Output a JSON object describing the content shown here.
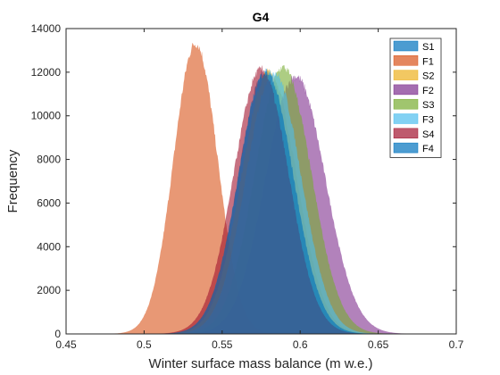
{
  "chart_data": {
    "type": "histogram",
    "title": "G4",
    "xlabel": "Winter surface mass balance (m w.e.)",
    "ylabel": "Frequency",
    "xlim": [
      0.45,
      0.7
    ],
    "ylim": [
      0,
      14000
    ],
    "xticks": [
      "0.45",
      "0.5",
      "0.55",
      "0.6",
      "0.65",
      "0.7"
    ],
    "yticks": [
      "0",
      "2000",
      "4000",
      "6000",
      "8000",
      "10000",
      "12000",
      "14000"
    ],
    "grid": false,
    "legend_position": "top-right",
    "series": [
      {
        "name": "S1",
        "color": "#0072BD",
        "mean": 0.578,
        "sd": 0.0175,
        "peak": 12000
      },
      {
        "name": "F1",
        "color": "#D95319",
        "mean": 0.533,
        "sd": 0.014,
        "peak": 13300
      },
      {
        "name": "S2",
        "color": "#EDB120",
        "mean": 0.58,
        "sd": 0.0175,
        "peak": 12000
      },
      {
        "name": "F2",
        "color": "#7E2F8E",
        "mean": 0.597,
        "sd": 0.019,
        "peak": 11800
      },
      {
        "name": "S3",
        "color": "#77AC30",
        "mean": 0.589,
        "sd": 0.018,
        "peak": 12200
      },
      {
        "name": "F3",
        "color": "#4DBEEE",
        "mean": 0.583,
        "sd": 0.0175,
        "peak": 12000
      },
      {
        "name": "S4",
        "color": "#A2142F",
        "mean": 0.575,
        "sd": 0.0175,
        "peak": 12100
      },
      {
        "name": "F4",
        "color": "#0072BD",
        "mean": 0.578,
        "sd": 0.0175,
        "peak": 12000
      }
    ]
  }
}
